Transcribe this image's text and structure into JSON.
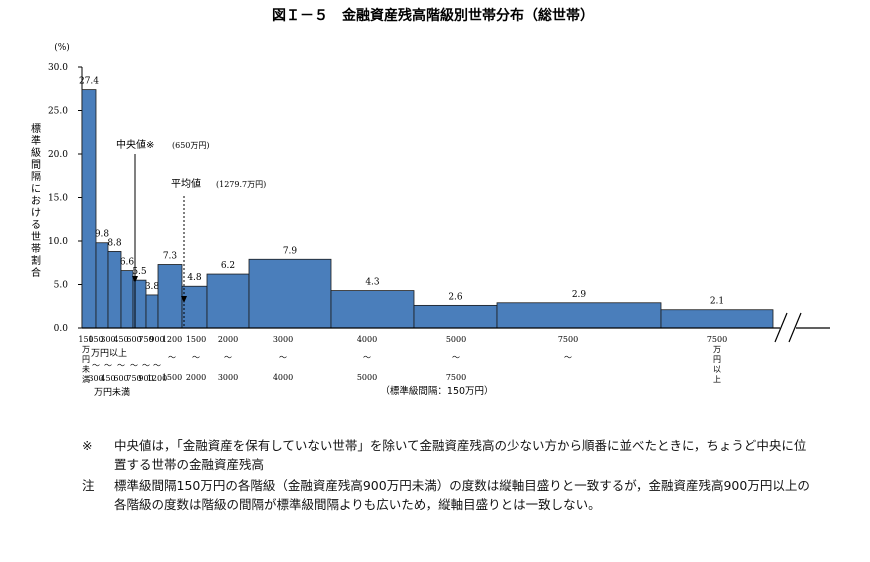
{
  "title": "図Ｉ－５　金融資産残高階級別世帯分布（総世帯）",
  "chart_data": {
    "type": "bar",
    "y_unit": "(%)",
    "ylabel": "標準級間隔における世帯割合",
    "ylim": [
      0,
      30
    ],
    "y_ticks": [
      "0.0",
      "5.0",
      "10.0",
      "15.0",
      "20.0",
      "25.0",
      "30.0"
    ],
    "bins_lower": [
      0,
      150,
      300,
      450,
      600,
      750,
      900,
      1200,
      1500,
      2000,
      3000,
      4000,
      5000,
      7500
    ],
    "bins_upper": [
      150,
      300,
      450,
      600,
      750,
      900,
      1200,
      1500,
      2000,
      3000,
      4000,
      5000,
      7500,
      null
    ],
    "values": [
      27.4,
      9.8,
      8.8,
      6.6,
      5.5,
      3.8,
      7.3,
      4.8,
      6.2,
      7.9,
      4.3,
      2.6,
      2.9,
      2.1
    ],
    "value_labels": [
      "27.4",
      "9.8",
      "8.8",
      "6.6",
      "5.5",
      "3.8",
      "7.3",
      "4.8",
      "6.2",
      "7.9",
      "4.3",
      "2.6",
      "2.9",
      "2.1"
    ],
    "bar_color": "#4a7ebb",
    "axis_break": true,
    "median": {
      "label": "中央値※",
      "value_label": "(650万円)",
      "value": 650
    },
    "mean": {
      "label": "平均値",
      "value_label": "(1279.7万円)",
      "value": 1279.7
    },
    "x_first_label": [
      "150",
      "万",
      "円",
      "未",
      "満"
    ],
    "x_tiny_top": [
      "150",
      "300",
      "450",
      "600",
      "750",
      "900",
      "1200",
      "1500",
      "2000",
      "3000",
      "4000",
      "5000",
      "7500"
    ],
    "x_tiny_bottom": [
      "300",
      "450",
      "600",
      "750",
      "900",
      "1200",
      "1500",
      "2000",
      "3000",
      "4000",
      "5000",
      "7500"
    ],
    "x_range_sep": "〜",
    "x_unit_top": "万円以上",
    "x_unit_bottom": "万円未満",
    "x_last_label": [
      "7500",
      "万",
      "円",
      "以",
      "上"
    ],
    "x_note": "（標準級間隔：150万円）"
  },
  "notes": [
    {
      "mark": "※",
      "text": "中央値は，「金融資産を保有していない世帯」を除いて金融資産残高の少ない方から順番に並べたときに，ちょうど中央に位置する世帯の金融資産残高"
    },
    {
      "mark": "注",
      "text": "標準級間隔150万円の各階級（金融資産残高900万円未満）の度数は縦軸目盛りと一致するが，金融資産残高900万円以上の各階級の度数は階級の間隔が標準級間隔よりも広いため，縦軸目盛りとは一致しない。"
    }
  ]
}
